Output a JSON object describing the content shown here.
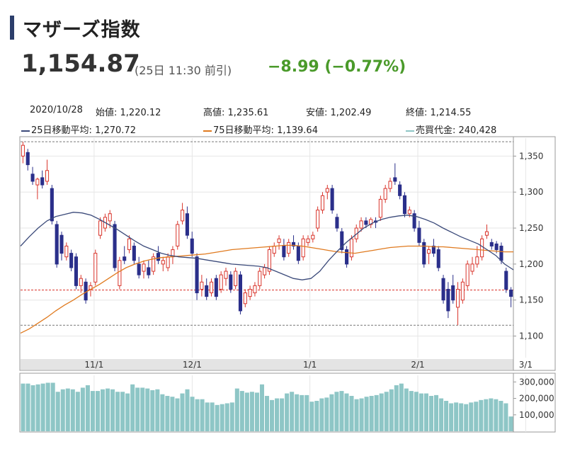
{
  "header": {
    "title": "マザーズ指数",
    "price": "1,154.87",
    "price_time": "(25日 11:30 前引)",
    "change": "−8.99 (−0.77%)"
  },
  "info": {
    "date": "2020/10/28",
    "open_label": "始値:",
    "open": "1,220.12",
    "high_label": "高値:",
    "high": "1,235.61",
    "low_label": "安値:",
    "low": "1,202.49",
    "close_label": "終値:",
    "close": "1,214.55",
    "ma25_label": "25日移動平均:",
    "ma25": "1,270.72",
    "ma75_label": "75日移動平均:",
    "ma75": "1,139.64",
    "volume_label": "売買代金:",
    "volume": "240,428"
  },
  "colors": {
    "up": "#d9342b",
    "down": "#2a2f8a",
    "ma25": "#3b4a7a",
    "ma75": "#e07a1f",
    "volume": "#8ec6c6",
    "accent": "#4a9a2a"
  },
  "chart_data": {
    "type": "candlestick",
    "x_ticks": [
      "11/1",
      "12/1",
      "1/1",
      "2/1",
      "3/1"
    ],
    "y_ticks": [
      1100,
      1150,
      1200,
      1250,
      1300,
      1350
    ],
    "y_tick_labels": [
      "1,100",
      "1,150",
      "1,200",
      "1,250",
      "1,300",
      "1,350"
    ],
    "ylim": [
      1070,
      1375
    ],
    "reference_lines": [
      1370,
      1164,
      1115
    ],
    "candles": [
      {
        "o": 1350,
        "h": 1370,
        "l": 1340,
        "c": 1365
      },
      {
        "o": 1355,
        "h": 1360,
        "l": 1330,
        "c": 1338
      },
      {
        "o": 1325,
        "h": 1335,
        "l": 1310,
        "c": 1315
      },
      {
        "o": 1310,
        "h": 1320,
        "l": 1290,
        "c": 1318
      },
      {
        "o": 1320,
        "h": 1330,
        "l": 1305,
        "c": 1310
      },
      {
        "o": 1315,
        "h": 1345,
        "l": 1310,
        "c": 1330
      },
      {
        "o": 1305,
        "h": 1310,
        "l": 1255,
        "c": 1260
      },
      {
        "o": 1255,
        "h": 1260,
        "l": 1195,
        "c": 1200
      },
      {
        "o": 1240,
        "h": 1245,
        "l": 1205,
        "c": 1215
      },
      {
        "o": 1210,
        "h": 1230,
        "l": 1205,
        "c": 1225
      },
      {
        "o": 1215,
        "h": 1220,
        "l": 1190,
        "c": 1195
      },
      {
        "o": 1210,
        "h": 1215,
        "l": 1165,
        "c": 1170
      },
      {
        "o": 1170,
        "h": 1185,
        "l": 1160,
        "c": 1180
      },
      {
        "o": 1175,
        "h": 1180,
        "l": 1145,
        "c": 1150
      },
      {
        "o": 1165,
        "h": 1175,
        "l": 1155,
        "c": 1170
      },
      {
        "o": 1175,
        "h": 1220,
        "l": 1170,
        "c": 1215
      },
      {
        "o": 1240,
        "h": 1265,
        "l": 1235,
        "c": 1260
      },
      {
        "o": 1250,
        "h": 1270,
        "l": 1245,
        "c": 1265
      },
      {
        "o": 1260,
        "h": 1275,
        "l": 1250,
        "c": 1270
      },
      {
        "o": 1255,
        "h": 1260,
        "l": 1190,
        "c": 1195
      },
      {
        "o": 1170,
        "h": 1210,
        "l": 1165,
        "c": 1205
      },
      {
        "o": 1210,
        "h": 1225,
        "l": 1200,
        "c": 1205
      },
      {
        "o": 1220,
        "h": 1240,
        "l": 1215,
        "c": 1235
      },
      {
        "o": 1225,
        "h": 1230,
        "l": 1200,
        "c": 1205
      },
      {
        "o": 1200,
        "h": 1210,
        "l": 1180,
        "c": 1185
      },
      {
        "o": 1190,
        "h": 1205,
        "l": 1180,
        "c": 1200
      },
      {
        "o": 1195,
        "h": 1205,
        "l": 1180,
        "c": 1185
      },
      {
        "o": 1190,
        "h": 1215,
        "l": 1185,
        "c": 1210
      },
      {
        "o": 1215,
        "h": 1225,
        "l": 1200,
        "c": 1205
      },
      {
        "o": 1200,
        "h": 1210,
        "l": 1190,
        "c": 1205
      },
      {
        "o": 1195,
        "h": 1215,
        "l": 1190,
        "c": 1210
      },
      {
        "o": 1210,
        "h": 1225,
        "l": 1200,
        "c": 1220
      },
      {
        "o": 1225,
        "h": 1260,
        "l": 1220,
        "c": 1255
      },
      {
        "o": 1260,
        "h": 1285,
        "l": 1255,
        "c": 1275
      },
      {
        "o": 1270,
        "h": 1280,
        "l": 1235,
        "c": 1240
      },
      {
        "o": 1235,
        "h": 1245,
        "l": 1210,
        "c": 1215
      },
      {
        "o": 1210,
        "h": 1215,
        "l": 1150,
        "c": 1160
      },
      {
        "o": 1165,
        "h": 1185,
        "l": 1155,
        "c": 1175
      },
      {
        "o": 1170,
        "h": 1180,
        "l": 1150,
        "c": 1155
      },
      {
        "o": 1160,
        "h": 1180,
        "l": 1155,
        "c": 1175
      },
      {
        "o": 1180,
        "h": 1185,
        "l": 1150,
        "c": 1155
      },
      {
        "o": 1165,
        "h": 1190,
        "l": 1160,
        "c": 1185
      },
      {
        "o": 1180,
        "h": 1195,
        "l": 1170,
        "c": 1190
      },
      {
        "o": 1185,
        "h": 1190,
        "l": 1160,
        "c": 1165
      },
      {
        "o": 1170,
        "h": 1195,
        "l": 1165,
        "c": 1190
      },
      {
        "o": 1185,
        "h": 1190,
        "l": 1130,
        "c": 1135
      },
      {
        "o": 1145,
        "h": 1165,
        "l": 1140,
        "c": 1160
      },
      {
        "o": 1155,
        "h": 1170,
        "l": 1150,
        "c": 1165
      },
      {
        "o": 1160,
        "h": 1175,
        "l": 1155,
        "c": 1170
      },
      {
        "o": 1170,
        "h": 1195,
        "l": 1165,
        "c": 1190
      },
      {
        "o": 1185,
        "h": 1200,
        "l": 1180,
        "c": 1195
      },
      {
        "o": 1190,
        "h": 1225,
        "l": 1185,
        "c": 1220
      },
      {
        "o": 1215,
        "h": 1230,
        "l": 1210,
        "c": 1225
      },
      {
        "o": 1230,
        "h": 1240,
        "l": 1220,
        "c": 1235
      },
      {
        "o": 1225,
        "h": 1235,
        "l": 1205,
        "c": 1210
      },
      {
        "o": 1215,
        "h": 1235,
        "l": 1210,
        "c": 1230
      },
      {
        "o": 1230,
        "h": 1240,
        "l": 1220,
        "c": 1225
      },
      {
        "o": 1225,
        "h": 1230,
        "l": 1200,
        "c": 1205
      },
      {
        "o": 1210,
        "h": 1240,
        "l": 1205,
        "c": 1235
      },
      {
        "o": 1230,
        "h": 1240,
        "l": 1225,
        "c": 1235
      },
      {
        "o": 1235,
        "h": 1245,
        "l": 1230,
        "c": 1240
      },
      {
        "o": 1250,
        "h": 1280,
        "l": 1245,
        "c": 1275
      },
      {
        "o": 1275,
        "h": 1300,
        "l": 1270,
        "c": 1295
      },
      {
        "o": 1300,
        "h": 1310,
        "l": 1290,
        "c": 1305
      },
      {
        "o": 1305,
        "h": 1310,
        "l": 1270,
        "c": 1275
      },
      {
        "o": 1265,
        "h": 1270,
        "l": 1245,
        "c": 1250
      },
      {
        "o": 1245,
        "h": 1250,
        "l": 1215,
        "c": 1220
      },
      {
        "o": 1220,
        "h": 1225,
        "l": 1195,
        "c": 1200
      },
      {
        "o": 1210,
        "h": 1240,
        "l": 1205,
        "c": 1235
      },
      {
        "o": 1235,
        "h": 1255,
        "l": 1230,
        "c": 1250
      },
      {
        "o": 1250,
        "h": 1265,
        "l": 1245,
        "c": 1260
      },
      {
        "o": 1260,
        "h": 1265,
        "l": 1250,
        "c": 1255
      },
      {
        "o": 1255,
        "h": 1265,
        "l": 1250,
        "c": 1262
      },
      {
        "o": 1260,
        "h": 1265,
        "l": 1250,
        "c": 1258
      },
      {
        "o": 1265,
        "h": 1295,
        "l": 1260,
        "c": 1290
      },
      {
        "o": 1290,
        "h": 1310,
        "l": 1285,
        "c": 1305
      },
      {
        "o": 1305,
        "h": 1320,
        "l": 1300,
        "c": 1315
      },
      {
        "o": 1320,
        "h": 1340,
        "l": 1310,
        "c": 1315
      },
      {
        "o": 1310,
        "h": 1315,
        "l": 1290,
        "c": 1295
      },
      {
        "o": 1295,
        "h": 1300,
        "l": 1265,
        "c": 1270
      },
      {
        "o": 1270,
        "h": 1280,
        "l": 1265,
        "c": 1275
      },
      {
        "o": 1270,
        "h": 1275,
        "l": 1245,
        "c": 1250
      },
      {
        "o": 1250,
        "h": 1260,
        "l": 1225,
        "c": 1230
      },
      {
        "o": 1230,
        "h": 1235,
        "l": 1195,
        "c": 1200
      },
      {
        "o": 1215,
        "h": 1225,
        "l": 1200,
        "c": 1220
      },
      {
        "o": 1225,
        "h": 1235,
        "l": 1210,
        "c": 1215
      },
      {
        "o": 1220,
        "h": 1225,
        "l": 1190,
        "c": 1195
      },
      {
        "o": 1180,
        "h": 1185,
        "l": 1145,
        "c": 1150
      },
      {
        "o": 1165,
        "h": 1175,
        "l": 1125,
        "c": 1135
      },
      {
        "o": 1170,
        "h": 1185,
        "l": 1145,
        "c": 1150
      },
      {
        "o": 1140,
        "h": 1175,
        "l": 1115,
        "c": 1165
      },
      {
        "o": 1150,
        "h": 1180,
        "l": 1145,
        "c": 1175
      },
      {
        "o": 1170,
        "h": 1205,
        "l": 1165,
        "c": 1200
      },
      {
        "o": 1190,
        "h": 1210,
        "l": 1185,
        "c": 1200
      },
      {
        "o": 1200,
        "h": 1225,
        "l": 1195,
        "c": 1210
      },
      {
        "o": 1210,
        "h": 1240,
        "l": 1205,
        "c": 1235
      },
      {
        "o": 1240,
        "h": 1255,
        "l": 1235,
        "c": 1245
      },
      {
        "o": 1230,
        "h": 1235,
        "l": 1220,
        "c": 1225
      },
      {
        "o": 1228,
        "h": 1232,
        "l": 1215,
        "c": 1220
      },
      {
        "o": 1225,
        "h": 1230,
        "l": 1200,
        "c": 1205
      },
      {
        "o": 1190,
        "h": 1195,
        "l": 1160,
        "c": 1165
      },
      {
        "o": 1164,
        "h": 1168,
        "l": 1140,
        "c": 1155
      }
    ],
    "ma25": [
      1225,
      1238,
      1250,
      1260,
      1266,
      1269,
      1272,
      1271,
      1268,
      1262,
      1255,
      1248,
      1240,
      1232,
      1225,
      1220,
      1215,
      1212,
      1210,
      1209,
      1208,
      1206,
      1204,
      1202,
      1200,
      1199,
      1198,
      1197,
      1195,
      1190,
      1185,
      1180,
      1178,
      1180,
      1190,
      1205,
      1218,
      1230,
      1240,
      1250,
      1257,
      1262,
      1265,
      1267,
      1268,
      1266,
      1262,
      1257,
      1250,
      1244,
      1238,
      1233,
      1228,
      1220,
      1212,
      1200,
      1192
    ],
    "ma75": [
      1104,
      1110,
      1118,
      1126,
      1135,
      1143,
      1150,
      1158,
      1165,
      1172,
      1180,
      1188,
      1195,
      1200,
      1204,
      1207,
      1209,
      1210,
      1211,
      1212,
      1213,
      1214,
      1216,
      1218,
      1220,
      1221,
      1222,
      1223,
      1224,
      1225,
      1226,
      1226,
      1225,
      1223,
      1221,
      1219,
      1217,
      1216,
      1215,
      1217,
      1219,
      1221,
      1223,
      1224,
      1225,
      1225,
      1225,
      1224,
      1224,
      1223,
      1222,
      1221,
      1220,
      1219,
      1218,
      1217,
      1217
    ],
    "volume_ticks": [
      100000,
      200000,
      300000
    ],
    "volume_tick_labels": [
      "100,000",
      "200,000",
      "300,000"
    ],
    "volume_max": 340000,
    "volume": [
      290000,
      290000,
      280000,
      285000,
      290000,
      295000,
      295000,
      240000,
      255000,
      260000,
      255000,
      240000,
      265000,
      280000,
      245000,
      245000,
      255000,
      260000,
      255000,
      240000,
      240000,
      230000,
      285000,
      265000,
      265000,
      260000,
      250000,
      255000,
      225000,
      215000,
      210000,
      200000,
      230000,
      255000,
      210000,
      195000,
      195000,
      175000,
      175000,
      160000,
      165000,
      170000,
      175000,
      260000,
      245000,
      235000,
      240000,
      235000,
      285000,
      215000,
      190000,
      200000,
      200000,
      230000,
      240000,
      225000,
      220000,
      220000,
      180000,
      185000,
      200000,
      205000,
      225000,
      240000,
      245000,
      230000,
      215000,
      195000,
      200000,
      210000,
      215000,
      220000,
      230000,
      240000,
      255000,
      280000,
      290000,
      260000,
      245000,
      240000,
      230000,
      230000,
      215000,
      220000,
      200000,
      185000,
      170000,
      175000,
      170000,
      165000,
      175000,
      180000,
      190000,
      195000,
      200000,
      195000,
      185000,
      170000,
      90000
    ]
  }
}
